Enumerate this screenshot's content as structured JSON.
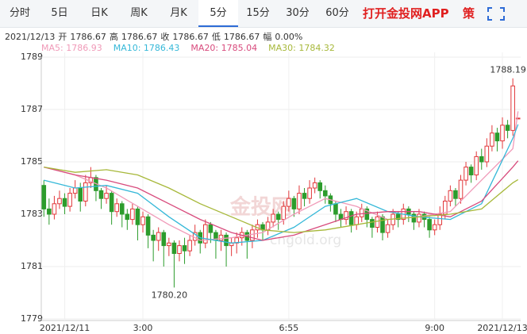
{
  "tabs": [
    "分时",
    "5日",
    "日K",
    "周K",
    "月K",
    "5分",
    "15分",
    "30分",
    "60分"
  ],
  "active_tab": 5,
  "app_link": "打开金投网APP",
  "tab_icon": "策",
  "info": {
    "date": "2021/12/13",
    "items": [
      {
        "label": "开",
        "value": "1786.67"
      },
      {
        "label": "高",
        "value": "1786.67"
      },
      {
        "label": "收",
        "value": "1786.67"
      },
      {
        "label": "低",
        "value": "1786.67"
      },
      {
        "label": "幅",
        "value": "0.00%"
      }
    ]
  },
  "chart_data": {
    "type": "candlestick",
    "watermark": "金投网",
    "watermark_url": "cngold.org",
    "up_color": "#e2373a",
    "down_color": "#2c9c2c",
    "grid": true,
    "xlim": [
      -0.5,
      91.5
    ],
    "ylim": [
      1779,
      1789
    ],
    "yticks": [
      1779,
      1781,
      1783,
      1785,
      1787,
      1789
    ],
    "xticks": [
      {
        "value": 4,
        "label": "2021/12/11"
      },
      {
        "value": 19,
        "label": "3:00"
      },
      {
        "value": 47,
        "label": "6:55"
      },
      {
        "value": 75,
        "label": "9:00"
      },
      {
        "value": 88,
        "label": "2021/12/13"
      }
    ],
    "open": [
      1784.1,
      1783.2,
      1783.0,
      1783.4,
      1783.6,
      1783.3,
      1783.8,
      1784.0,
      1783.5,
      1784.2,
      1784.4,
      1783.9,
      1783.6,
      1783.8,
      1783.1,
      1783.4,
      1783.0,
      1782.8,
      1783.2,
      1782.6,
      1782.9,
      1782.2,
      1782.0,
      1782.3,
      1781.8,
      1781.9,
      1781.5,
      1781.8,
      1781.6,
      1782.0,
      1782.3,
      1781.9,
      1782.6,
      1782.3,
      1782.0,
      1782.2,
      1781.8,
      1781.9,
      1782.1,
      1782.3,
      1782.0,
      1782.4,
      1782.6,
      1782.4,
      1782.7,
      1783.0,
      1782.8,
      1783.3,
      1783.6,
      1783.2,
      1783.8,
      1783.6,
      1784.0,
      1784.2,
      1783.9,
      1783.7,
      1783.4,
      1783.0,
      1782.8,
      1783.1,
      1782.6,
      1782.9,
      1783.2,
      1782.8,
      1782.5,
      1782.9,
      1782.3,
      1782.6,
      1783.0,
      1782.8,
      1783.2,
      1783.0,
      1782.7,
      1783.0,
      1782.8,
      1782.4,
      1782.6,
      1783.0,
      1783.5,
      1783.9,
      1783.6,
      1784.3,
      1784.8,
      1784.5,
      1785.2,
      1785.0,
      1785.6,
      1786.1,
      1785.8,
      1786.4,
      1786.2,
      1786.67
    ],
    "high": [
      1784.3,
      1783.6,
      1783.7,
      1783.9,
      1783.8,
      1784.0,
      1784.3,
      1784.2,
      1784.5,
      1784.8,
      1784.5,
      1784.0,
      1784.1,
      1783.9,
      1783.6,
      1783.5,
      1783.2,
      1783.4,
      1783.3,
      1783.1,
      1783.0,
      1782.4,
      1782.5,
      1782.4,
      1782.1,
      1782.0,
      1782.0,
      1782.1,
      1782.2,
      1782.6,
      1782.4,
      1782.8,
      1782.7,
      1782.4,
      1782.4,
      1782.3,
      1782.1,
      1782.3,
      1782.5,
      1782.4,
      1782.6,
      1782.8,
      1782.7,
      1782.9,
      1783.2,
      1783.1,
      1783.5,
      1783.9,
      1783.7,
      1784.1,
      1784.0,
      1784.3,
      1784.4,
      1784.3,
      1784.1,
      1783.8,
      1783.5,
      1783.2,
      1783.3,
      1783.2,
      1783.1,
      1783.4,
      1783.3,
      1782.9,
      1783.1,
      1783.0,
      1782.8,
      1783.2,
      1783.1,
      1783.4,
      1783.3,
      1783.1,
      1783.2,
      1783.1,
      1782.9,
      1782.8,
      1783.3,
      1783.7,
      1784.1,
      1784.0,
      1784.5,
      1785.0,
      1784.9,
      1785.4,
      1785.5,
      1785.9,
      1786.4,
      1786.3,
      1786.7,
      1786.6,
      1788.19,
      1786.67
    ],
    "low": [
      1782.9,
      1782.6,
      1782.8,
      1783.2,
      1783.0,
      1783.1,
      1783.6,
      1783.1,
      1783.3,
      1784.0,
      1783.5,
      1783.2,
      1783.4,
      1782.6,
      1782.9,
      1782.5,
      1782.4,
      1782.6,
      1782.0,
      1782.3,
      1781.7,
      1781.2,
      1781.6,
      1781.0,
      1781.4,
      1780.2,
      1781.2,
      1781.1,
      1781.4,
      1781.8,
      1781.5,
      1781.7,
      1781.9,
      1781.3,
      1781.6,
      1781.0,
      1781.4,
      1781.5,
      1781.8,
      1781.3,
      1781.7,
      1782.1,
      1782.0,
      1782.2,
      1782.5,
      1782.4,
      1782.6,
      1783.1,
      1782.9,
      1783.0,
      1783.3,
      1783.4,
      1783.8,
      1783.6,
      1783.4,
      1783.1,
      1782.7,
      1782.5,
      1782.6,
      1782.3,
      1782.4,
      1782.7,
      1782.5,
      1782.1,
      1782.3,
      1782.0,
      1782.1,
      1782.4,
      1782.5,
      1782.6,
      1782.7,
      1782.4,
      1782.5,
      1782.5,
      1782.1,
      1782.2,
      1782.4,
      1782.8,
      1783.3,
      1783.3,
      1783.4,
      1784.1,
      1784.2,
      1784.3,
      1784.7,
      1784.8,
      1785.4,
      1785.4,
      1785.5,
      1785.9,
      1786.0,
      1786.67
    ],
    "close": [
      1783.2,
      1783.0,
      1783.4,
      1783.6,
      1783.3,
      1783.8,
      1784.0,
      1783.5,
      1784.2,
      1784.4,
      1783.9,
      1783.6,
      1783.8,
      1783.1,
      1783.4,
      1783.0,
      1782.8,
      1783.2,
      1782.6,
      1782.9,
      1782.2,
      1782.0,
      1782.3,
      1781.8,
      1781.9,
      1781.5,
      1781.8,
      1781.6,
      1782.0,
      1782.3,
      1781.9,
      1782.6,
      1782.3,
      1782.0,
      1782.2,
      1781.8,
      1781.9,
      1782.1,
      1782.3,
      1782.0,
      1782.4,
      1782.6,
      1782.4,
      1782.7,
      1783.0,
      1782.8,
      1783.3,
      1783.6,
      1783.2,
      1783.8,
      1783.6,
      1784.0,
      1784.2,
      1783.9,
      1783.7,
      1783.4,
      1783.0,
      1782.8,
      1783.1,
      1782.6,
      1782.9,
      1783.2,
      1782.8,
      1782.5,
      1782.9,
      1782.3,
      1782.6,
      1783.0,
      1782.8,
      1783.2,
      1783.0,
      1782.7,
      1783.0,
      1782.8,
      1782.4,
      1782.6,
      1783.0,
      1783.5,
      1783.9,
      1783.6,
      1784.3,
      1784.8,
      1784.5,
      1785.2,
      1785.0,
      1785.6,
      1786.1,
      1785.8,
      1786.4,
      1786.2,
      1787.9,
      1786.67
    ],
    "annotations": [
      {
        "x": 90,
        "value": 1788.19,
        "label": "1788.19"
      },
      {
        "x": 25,
        "value": 1780.2,
        "label": "1780.20"
      }
    ],
    "ma_x": [
      0,
      6,
      12,
      18,
      24,
      30,
      36,
      42,
      48,
      54,
      60,
      66,
      72,
      78,
      84,
      90,
      91
    ],
    "series": [
      {
        "name": "MA5",
        "legend": "MA5: 1786.93",
        "color": "#f09ab8",
        "values": [
          1784.8,
          1784.5,
          1784.0,
          1783.3,
          1782.6,
          1782.0,
          1782.1,
          1782.3,
          1783.0,
          1783.6,
          1783.3,
          1782.8,
          1782.9,
          1783.1,
          1784.3,
          1785.5,
          1786.93
        ]
      },
      {
        "name": "MA10",
        "legend": "MA10: 1786.43",
        "color": "#35b8d8",
        "values": [
          1784.3,
          1784.0,
          1784.1,
          1783.8,
          1782.9,
          1782.1,
          1781.9,
          1782.0,
          1782.5,
          1783.3,
          1783.6,
          1783.1,
          1782.9,
          1782.8,
          1783.4,
          1785.9,
          1786.43
        ]
      },
      {
        "name": "MA20",
        "legend": "MA20: 1785.04",
        "color": "#d84b7d",
        "values": [
          1784.8,
          1784.5,
          1784.3,
          1784.0,
          1783.4,
          1782.8,
          1782.3,
          1782.0,
          1782.2,
          1782.6,
          1783.0,
          1783.1,
          1783.1,
          1782.9,
          1783.5,
          1784.8,
          1785.04
        ]
      },
      {
        "name": "MA30",
        "legend": "MA30: 1784.32",
        "color": "#a7b83a",
        "values": [
          1784.8,
          1784.6,
          1784.7,
          1784.5,
          1784.0,
          1783.4,
          1782.9,
          1782.4,
          1782.3,
          1782.4,
          1782.6,
          1782.8,
          1782.9,
          1783.0,
          1783.2,
          1784.2,
          1784.32
        ]
      }
    ]
  }
}
